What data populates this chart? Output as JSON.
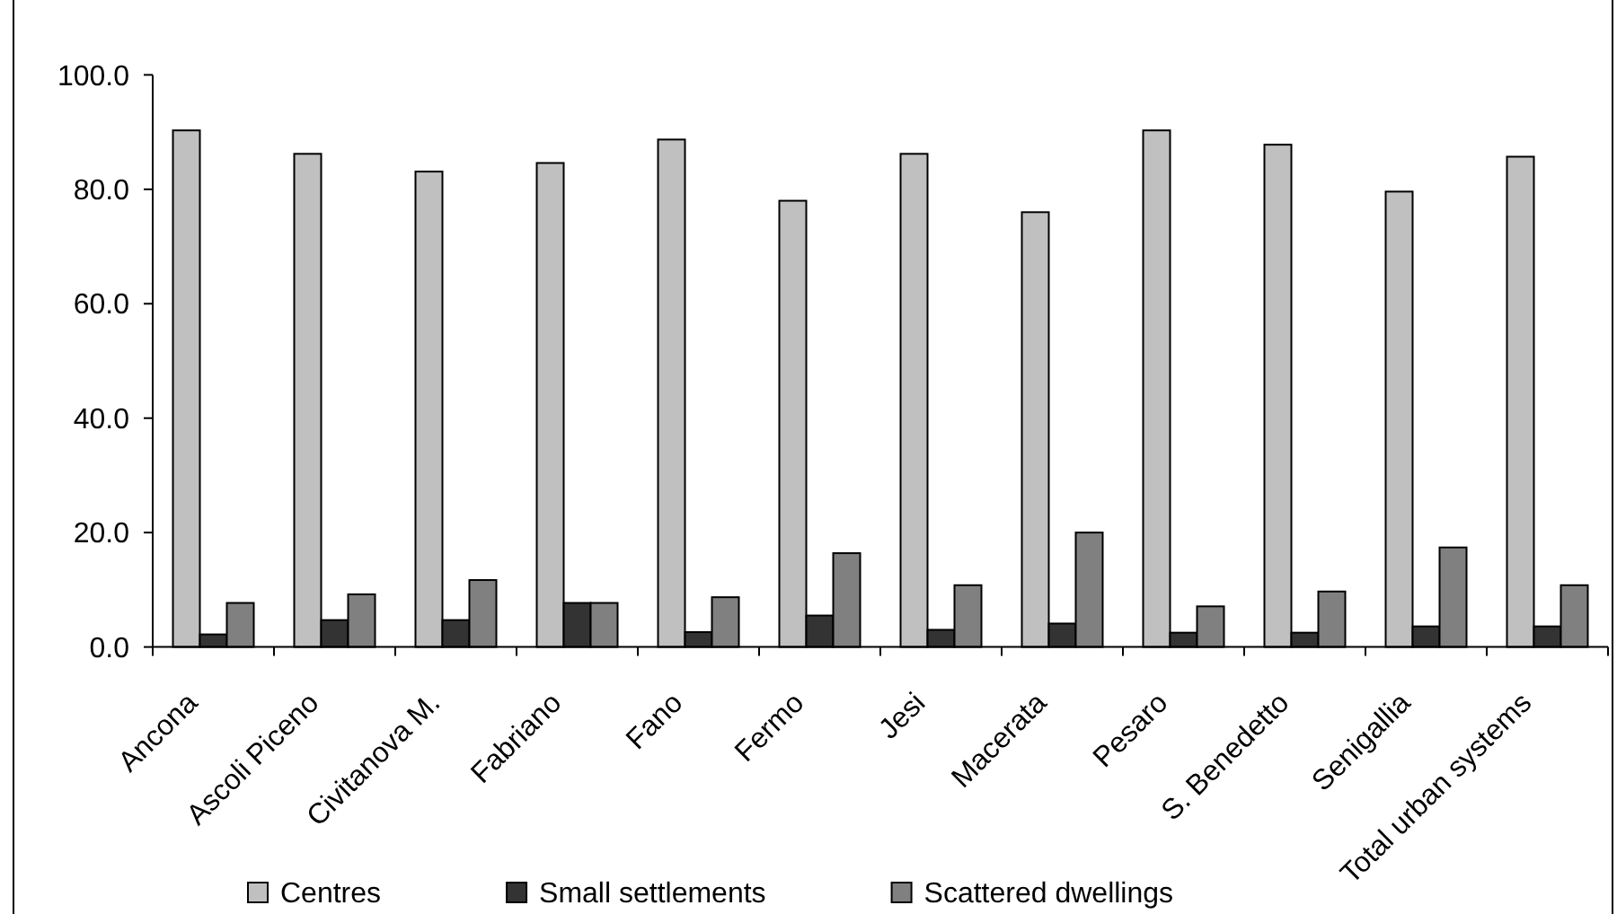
{
  "chart_data": {
    "type": "bar",
    "categories": [
      "Ancona",
      "Ascoli Piceno",
      "Civitanova M.",
      "Fabriano",
      "Fano",
      "Fermo",
      "Jesi",
      "Macerata",
      "Pesaro",
      "S. Benedetto",
      "Senigallia",
      "Total urban systems"
    ],
    "series": [
      {
        "name": "Centres",
        "color": "#c0c0c0",
        "values": [
          90.3,
          86.2,
          83.1,
          84.6,
          88.7,
          78.0,
          86.2,
          76.0,
          90.3,
          87.8,
          79.6,
          85.7
        ]
      },
      {
        "name": "Small settlements",
        "color": "#333333",
        "values": [
          2.2,
          4.7,
          4.7,
          7.7,
          2.6,
          5.5,
          3.0,
          4.1,
          2.5,
          2.5,
          3.6,
          3.6
        ]
      },
      {
        "name": "Scattered dwellings",
        "color": "#808080",
        "values": [
          7.7,
          9.2,
          11.7,
          7.7,
          8.7,
          16.4,
          10.8,
          20.0,
          7.1,
          9.7,
          17.4,
          10.8
        ]
      }
    ],
    "ylim": [
      0,
      100
    ],
    "yticks": [
      {
        "value": 0,
        "label": "0.0"
      },
      {
        "value": 20,
        "label": "20.0"
      },
      {
        "value": 40,
        "label": "40.0"
      },
      {
        "value": 60,
        "label": "60.0"
      },
      {
        "value": 80,
        "label": "80.0"
      },
      {
        "value": 100,
        "label": "100.0"
      }
    ],
    "legend": "bottom"
  }
}
